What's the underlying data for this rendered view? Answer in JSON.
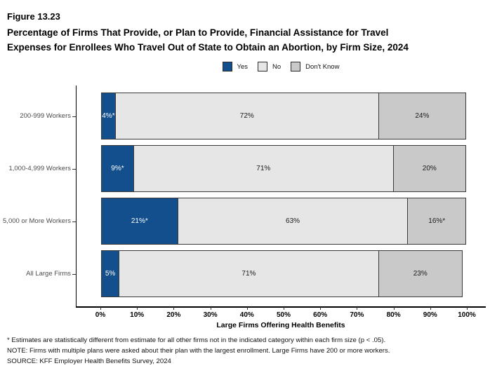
{
  "figure": {
    "number": "Figure 13.23",
    "title_line1": "Percentage of Firms That Provide, or Plan to Provide, Financial Assistance for Travel",
    "title_line2": "Expenses for Enrollees Who Travel Out of State to Obtain an Abortion, by Firm Size, 2024"
  },
  "colors": {
    "yes": "#124f8c",
    "no": "#e6e6e6",
    "dont_know": "#c9c9c9",
    "segment_border": "#3a3a3a",
    "axis": "#000000",
    "category_label": "#4d4d4d"
  },
  "chart_data": {
    "type": "bar",
    "orientation": "horizontal-stacked",
    "title": "Percentage of Firms That Provide, or Plan to Provide, Financial Assistance for Travel Expenses for Enrollees Who Travel Out of State to Obtain an Abortion, by Firm Size, 2024",
    "categories": [
      "200-999 Workers",
      "1,000-4,999 Workers",
      "5,000 or More Workers",
      "All Large Firms"
    ],
    "series": [
      {
        "name": "Yes",
        "color": "#124f8c",
        "text_color": "#ffffff",
        "values": [
          4,
          9,
          21,
          5
        ],
        "labels": [
          "4%*",
          "9%*",
          "21%*",
          "5%"
        ]
      },
      {
        "name": "No",
        "color": "#e6e6e6",
        "text_color": "#1a1a1a",
        "values": [
          72,
          71,
          63,
          71
        ],
        "labels": [
          "72%",
          "71%",
          "63%",
          "71%"
        ]
      },
      {
        "name": "Don't Know",
        "color": "#c9c9c9",
        "text_color": "#1a1a1a",
        "values": [
          24,
          20,
          16,
          23
        ],
        "labels": [
          "24%",
          "20%",
          "16%*",
          "23%"
        ]
      }
    ],
    "xlabel": "Large Firms Offering Health Benefits",
    "ylabel": "",
    "xlim": [
      0,
      100
    ],
    "x_ticks": [
      "0%",
      "10%",
      "20%",
      "30%",
      "40%",
      "50%",
      "60%",
      "70%",
      "80%",
      "90%",
      "100%"
    ],
    "grid": false,
    "legend_position": "top-center"
  },
  "legend": {
    "items": [
      {
        "label": "Yes",
        "color": "#124f8c"
      },
      {
        "label": "No",
        "color": "#e6e6e6"
      },
      {
        "label": "Don't Know",
        "color": "#c9c9c9"
      }
    ]
  },
  "footnotes": [
    "* Estimates are statistically different from estimate for all other firms not in the indicated category within each firm size (p < .05).",
    "NOTE: Firms with multiple plans were asked about their plan with the largest enrollment.  Large Firms have 200 or more workers.",
    "SOURCE: KFF Employer Health Benefits Survey, 2024"
  ]
}
